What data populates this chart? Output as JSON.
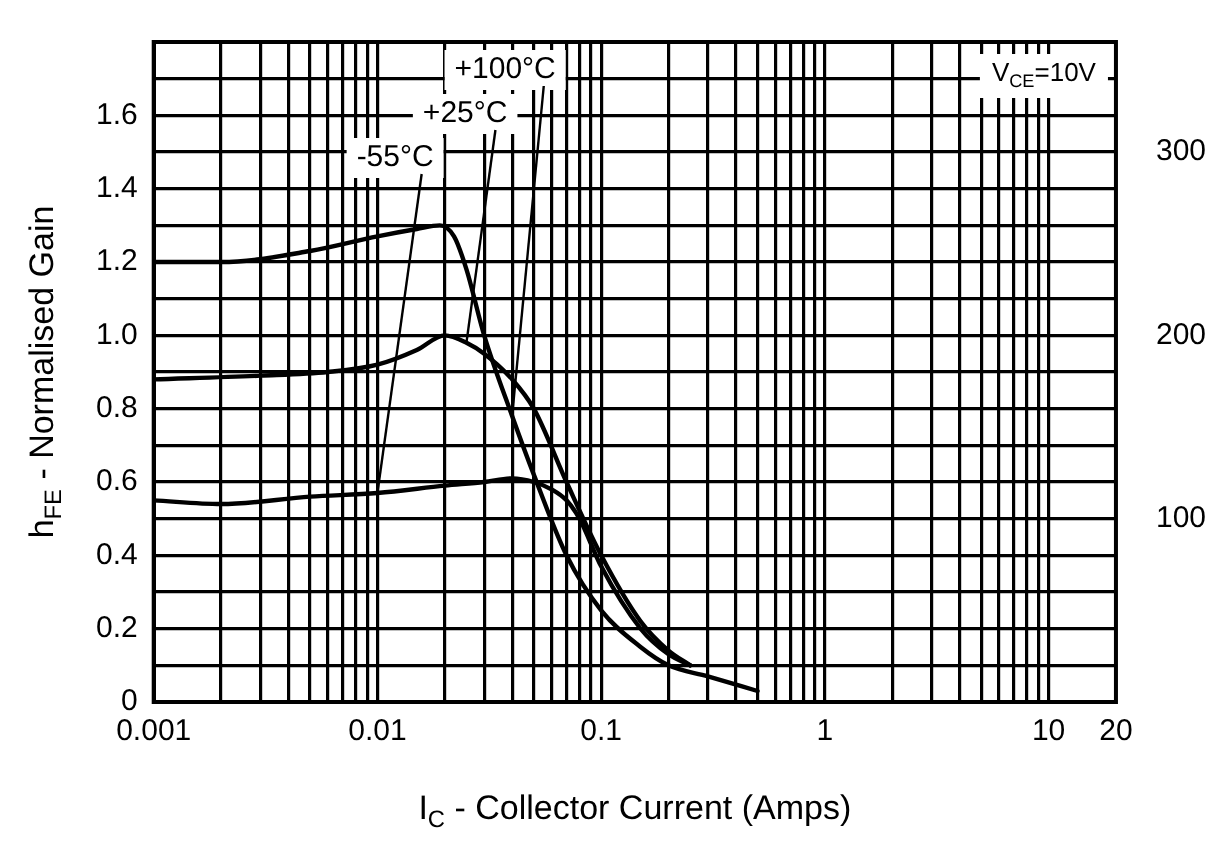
{
  "chart_data": {
    "type": "line",
    "xlabel": "I$_{C}$ - Collector Current (Amps)",
    "ylabel": "h$_{FE}$ - Normalised Gain",
    "log": "x",
    "xlim": [
      0.001,
      20
    ],
    "xticks": [
      0.001,
      {
        "value": 0.002,
        "label": null
      },
      {
        "value": 0.003,
        "label": null
      },
      {
        "value": 0.004,
        "label": null
      },
      {
        "value": 0.005,
        "label": null
      },
      {
        "value": 0.006,
        "label": null
      },
      {
        "value": 0.007,
        "label": null
      },
      {
        "value": 0.008,
        "label": null
      },
      {
        "value": 0.009,
        "label": null
      },
      0.01,
      {
        "value": 0.02,
        "label": null
      },
      {
        "value": 0.03,
        "label": null
      },
      {
        "value": 0.04,
        "label": null
      },
      {
        "value": 0.05,
        "label": null
      },
      {
        "value": 0.06,
        "label": null
      },
      {
        "value": 0.07,
        "label": null
      },
      {
        "value": 0.08,
        "label": null
      },
      {
        "value": 0.09,
        "label": null
      },
      0.1,
      {
        "value": 0.2,
        "label": null
      },
      {
        "value": 0.3,
        "label": null
      },
      {
        "value": 0.4,
        "label": null
      },
      {
        "value": 0.5,
        "label": null
      },
      {
        "value": 0.6,
        "label": null
      },
      {
        "value": 0.7,
        "label": null
      },
      {
        "value": 0.8,
        "label": null
      },
      {
        "value": 0.9,
        "label": null
      },
      1,
      {
        "value": 2,
        "label": null
      },
      {
        "value": 3,
        "label": null
      },
      {
        "value": 4,
        "label": null
      },
      {
        "value": 5,
        "label": null
      },
      {
        "value": 6,
        "label": null
      },
      {
        "value": 7,
        "label": null
      },
      {
        "value": 8,
        "label": null
      },
      {
        "value": 9,
        "label": null
      },
      10,
      20
    ],
    "ylim": [
      0,
      1.8
    ],
    "yticks": [
      0,
      {
        "value": 0.1,
        "label": null
      },
      0.2,
      {
        "value": 0.3,
        "label": null
      },
      0.4,
      {
        "value": 0.5,
        "label": null
      },
      0.6,
      {
        "value": 0.7,
        "label": null
      },
      0.8,
      {
        "value": 0.9,
        "label": null
      },
      "1.0",
      {
        "value": 1.1,
        "label": null
      },
      1.2,
      {
        "value": 1.3,
        "label": null
      },
      1.4,
      {
        "value": 1.5,
        "label": null
      },
      1.6,
      {
        "value": 1.7,
        "label": null
      }
    ],
    "y2lim": [
      0,
      360
    ],
    "y2ticks": [
      100,
      200,
      300
    ],
    "grid": true,
    "legend": false,
    "marker": "none",
    "line_style": "solid",
    "annotations": [
      "V$_{CE}$=10V"
    ],
    "series": [
      {
        "name": "+100°C",
        "color": "#000000",
        "x": [
          0.001,
          0.002,
          0.005,
          0.01,
          0.015,
          0.019,
          0.022,
          0.025,
          0.03,
          0.04,
          0.05,
          0.07,
          0.1,
          0.15,
          0.2,
          0.3,
          0.5
        ],
        "values": [
          1.2,
          1.2,
          1.23,
          1.27,
          1.29,
          1.3,
          1.27,
          1.18,
          1.0,
          0.78,
          0.62,
          0.4,
          0.25,
          0.15,
          0.1,
          0.07,
          0.03
        ]
      },
      {
        "name": "+25°C",
        "color": "#000000",
        "x": [
          0.001,
          0.003,
          0.006,
          0.01,
          0.015,
          0.02,
          0.025,
          0.03,
          0.04,
          0.05,
          0.07,
          0.1,
          0.15,
          0.2,
          0.25
        ],
        "values": [
          0.88,
          0.89,
          0.9,
          0.92,
          0.96,
          1.0,
          0.98,
          0.95,
          0.88,
          0.8,
          0.6,
          0.4,
          0.22,
          0.14,
          0.1
        ]
      },
      {
        "name": "-55°C",
        "color": "#000000",
        "x": [
          0.001,
          0.002,
          0.005,
          0.01,
          0.02,
          0.03,
          0.04,
          0.05,
          0.06,
          0.07,
          0.08,
          0.1,
          0.15,
          0.2,
          0.25
        ],
        "values": [
          0.55,
          0.54,
          0.56,
          0.57,
          0.59,
          0.6,
          0.61,
          0.6,
          0.58,
          0.55,
          0.5,
          0.37,
          0.2,
          0.13,
          0.1
        ]
      }
    ]
  }
}
